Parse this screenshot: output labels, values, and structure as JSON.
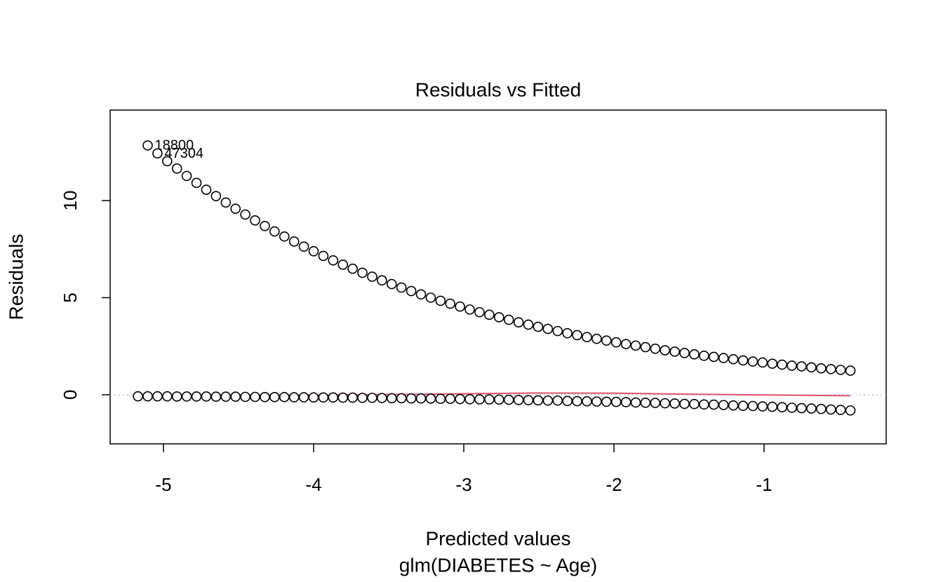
{
  "chart_data": {
    "type": "scatter",
    "title": "Residuals vs Fitted",
    "x_label": "Predicted values",
    "x_sublabel": "glm(DIABETES ~ Age)",
    "y_label": "Residuals",
    "xlim": [
      -5.355,
      -0.187
    ],
    "ylim": [
      -2.53,
      14.66
    ],
    "xticks": [
      -5,
      -4,
      -3,
      -2,
      -1
    ],
    "yticks": [
      0,
      5,
      10
    ],
    "reference_line": {
      "value": 0,
      "color": "#bebebe"
    },
    "x": [
      -5.17,
      -5.105,
      -5.04,
      -4.975,
      -4.91,
      -4.845,
      -4.78,
      -4.715,
      -4.65,
      -4.585,
      -4.52,
      -4.455,
      -4.39,
      -4.325,
      -4.26,
      -4.195,
      -4.13,
      -4.065,
      -4.0,
      -3.935,
      -3.87,
      -3.805,
      -3.74,
      -3.675,
      -3.61,
      -3.545,
      -3.48,
      -3.415,
      -3.35,
      -3.285,
      -3.22,
      -3.155,
      -3.09,
      -3.025,
      -2.96,
      -2.895,
      -2.83,
      -2.765,
      -2.7,
      -2.635,
      -2.57,
      -2.505,
      -2.44,
      -2.375,
      -2.31,
      -2.245,
      -2.18,
      -2.115,
      -2.05,
      -1.985,
      -1.92,
      -1.855,
      -1.79,
      -1.725,
      -1.66,
      -1.595,
      -1.53,
      -1.465,
      -1.4,
      -1.335,
      -1.27,
      -1.205,
      -1.14,
      -1.075,
      -1.01,
      -0.945,
      -0.88,
      -0.815,
      -0.75,
      -0.685,
      -0.62,
      -0.555,
      -0.49,
      -0.425
    ],
    "series": [
      {
        "color": "#000000",
        "values": [
          null,
          12.84,
          12.43,
          12.03,
          11.65,
          11.27,
          10.91,
          10.56,
          10.23,
          9.9,
          9.58,
          9.28,
          8.98,
          8.69,
          8.41,
          8.15,
          7.89,
          7.63,
          7.39,
          7.15,
          6.92,
          6.7,
          6.49,
          6.28,
          6.08,
          5.89,
          5.7,
          5.52,
          5.34,
          5.17,
          5.0,
          4.84,
          4.69,
          4.54,
          4.39,
          4.25,
          4.12,
          3.99,
          3.86,
          3.73,
          3.61,
          3.5,
          3.39,
          3.28,
          3.17,
          3.07,
          2.97,
          2.88,
          2.79,
          2.7,
          2.61,
          2.53,
          2.45,
          2.37,
          2.29,
          2.22,
          2.15,
          2.08,
          2.01,
          1.95,
          1.89,
          1.83,
          1.77,
          1.71,
          1.66,
          1.6,
          1.55,
          1.5,
          1.46,
          1.41,
          1.36,
          1.32,
          1.28,
          1.24
        ],
        "labels": [
          null,
          "18800",
          "47304",
          null,
          null,
          null,
          null,
          null,
          null,
          null,
          null,
          null,
          null,
          null,
          null,
          null,
          null,
          null,
          null,
          null,
          null,
          null,
          null,
          null,
          null,
          null,
          null,
          null,
          null,
          null,
          null,
          null,
          null,
          null,
          null,
          null,
          null,
          null,
          null,
          null,
          null,
          null,
          null,
          null,
          null,
          null,
          null,
          null,
          null,
          null,
          null,
          null,
          null,
          null,
          null,
          null,
          null,
          null,
          null,
          null,
          null,
          null,
          null,
          null,
          null,
          null,
          null,
          null,
          null,
          null,
          null,
          null,
          null,
          null
        ]
      },
      {
        "color": "#000000",
        "values": [
          -0.08,
          -0.08,
          -0.08,
          -0.08,
          -0.09,
          -0.09,
          -0.09,
          -0.09,
          -0.1,
          -0.1,
          -0.1,
          -0.11,
          -0.11,
          -0.12,
          -0.12,
          -0.12,
          -0.13,
          -0.13,
          -0.14,
          -0.14,
          -0.14,
          -0.15,
          -0.15,
          -0.16,
          -0.16,
          -0.17,
          -0.18,
          -0.18,
          -0.19,
          -0.19,
          -0.2,
          -0.21,
          -0.21,
          -0.22,
          -0.23,
          -0.24,
          -0.24,
          -0.25,
          -0.26,
          -0.27,
          -0.28,
          -0.29,
          -0.3,
          -0.3,
          -0.32,
          -0.33,
          -0.34,
          -0.35,
          -0.36,
          -0.37,
          -0.38,
          -0.4,
          -0.41,
          -0.42,
          -0.44,
          -0.45,
          -0.47,
          -0.48,
          -0.5,
          -0.51,
          -0.53,
          -0.55,
          -0.57,
          -0.58,
          -0.6,
          -0.62,
          -0.64,
          -0.67,
          -0.69,
          -0.71,
          -0.73,
          -0.76,
          -0.78,
          -0.81
        ]
      }
    ],
    "smooth": {
      "color": "#df536b",
      "x": [
        -5.17,
        -4.5,
        -4.0,
        -3.5,
        -3.0,
        -2.5,
        -2.0,
        -1.5,
        -1.0,
        -0.425
      ],
      "values": [
        -0.04,
        -0.03,
        -0.02,
        0.01,
        0.05,
        0.09,
        0.08,
        0.03,
        -0.01,
        -0.05
      ]
    }
  }
}
